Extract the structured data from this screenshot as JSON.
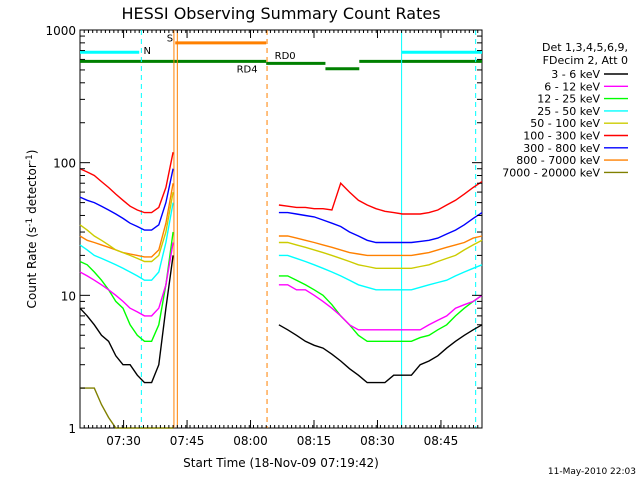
{
  "chart_data": {
    "type": "line",
    "title": "HESSI Observing Summary Count Rates",
    "xlabel": "Start Time (18-Nov-09 07:19:42)",
    "ylabel": "Count Rate (s",
    "ylabel_sup": "-1",
    "ylabel_tail": "detector",
    "ylabel_sup2": "-1",
    "ylabel_close": ")",
    "yscale": "log",
    "ylim": [
      1,
      1000
    ],
    "xlim_minutes": [
      0,
      95
    ],
    "x_ticks": [
      {
        "label": "07:30",
        "minutes": 10.3
      },
      {
        "label": "07:45",
        "minutes": 25.3
      },
      {
        "label": "08:00",
        "minutes": 40.3
      },
      {
        "label": "08:15",
        "minutes": 55.3
      },
      {
        "label": "08:30",
        "minutes": 70.3
      },
      {
        "label": "08:45",
        "minutes": 85.3
      }
    ],
    "y_ticks": [
      {
        "label": "1",
        "value": 1
      },
      {
        "label": "10",
        "value": 10
      },
      {
        "label": "100",
        "value": 100
      },
      {
        "label": "1000",
        "value": 1000
      }
    ],
    "legend": {
      "header": [
        "Det 1,3,4,5,6,9,",
        "FDecim 2, Att 0"
      ],
      "placement": "right"
    },
    "series": [
      {
        "name": "3 - 6 keV",
        "color": "#000000",
        "seg1": [
          8,
          7,
          6,
          5,
          4.5,
          3.5,
          3,
          3,
          2.5,
          2.2,
          2.2,
          3,
          8,
          20
        ],
        "seg2": [
          6,
          5.5,
          5,
          4.5,
          4.2,
          4,
          3.6,
          3.2,
          2.8,
          2.5,
          2.2,
          2.2,
          2.2,
          2.5,
          2.5,
          2.5,
          3,
          3.2,
          3.5,
          4,
          4.5,
          5,
          5.5,
          6
        ]
      },
      {
        "name": "6 - 12 keV",
        "color": "#ff00ff",
        "seg1": [
          15,
          14,
          13,
          12,
          11,
          10,
          9,
          8,
          7.5,
          7,
          7,
          8,
          12,
          25
        ],
        "seg2": [
          12,
          12,
          11,
          11,
          10,
          9,
          8,
          7,
          6,
          5.5,
          5.5,
          5.5,
          5.5,
          5.5,
          5.5,
          5.5,
          5.5,
          6,
          6.5,
          7,
          8,
          8.5,
          9,
          10
        ]
      },
      {
        "name": "12 - 25 keV",
        "color": "#00ff00",
        "seg1": [
          18,
          17,
          15,
          13,
          11,
          9,
          8,
          6,
          5,
          4.5,
          4.5,
          6,
          12,
          30
        ],
        "seg2": [
          14,
          14,
          13,
          12,
          11,
          10,
          8.5,
          7,
          6,
          5,
          4.5,
          4.5,
          4.5,
          4.5,
          4.5,
          4.5,
          4.8,
          5,
          5.5,
          6,
          7,
          8,
          9,
          10
        ]
      },
      {
        "name": "25 - 50 keV",
        "color": "#00ffff",
        "seg1": [
          24,
          22,
          20,
          19,
          18,
          17,
          16,
          15,
          14,
          13,
          13,
          15,
          25,
          50
        ],
        "seg2": [
          20,
          20,
          19,
          18,
          17,
          16,
          15,
          14,
          13,
          12,
          11.5,
          11,
          11,
          11,
          11,
          11,
          11.5,
          12,
          12.5,
          13,
          14,
          15,
          16,
          17
        ]
      },
      {
        "name": "50 - 100 keV",
        "color": "#cccc00",
        "seg1": [
          34,
          31,
          28,
          26,
          24,
          22,
          21,
          20,
          19,
          18,
          18,
          20,
          30,
          60
        ],
        "seg2": [
          25,
          25,
          24,
          23,
          22,
          21,
          20,
          19,
          18,
          17,
          16.5,
          16,
          16,
          16,
          16,
          16,
          16.5,
          17,
          18,
          19,
          20,
          22,
          24,
          26
        ]
      },
      {
        "name": "100 - 300 keV",
        "color": "#ff0000",
        "seg1": [
          90,
          85,
          80,
          72,
          65,
          58,
          52,
          47,
          44,
          42,
          42,
          46,
          65,
          120
        ],
        "seg2": [
          48,
          47,
          46,
          46,
          45,
          45,
          44,
          70,
          60,
          52,
          48,
          45,
          43,
          42,
          41,
          41,
          41,
          42,
          44,
          48,
          52,
          58,
          65,
          72
        ]
      },
      {
        "name": "300 - 800 keV",
        "color": "#0000ff",
        "seg1": [
          55,
          52,
          50,
          47,
          44,
          41,
          38,
          35,
          33,
          31,
          31,
          34,
          50,
          90
        ],
        "seg2": [
          42,
          42,
          41,
          40,
          39,
          37,
          35,
          33,
          30,
          28,
          26,
          25,
          25,
          25,
          25,
          25,
          25.5,
          26,
          27,
          29,
          31,
          34,
          38,
          42
        ]
      },
      {
        "name": "800 - 7000 keV",
        "color": "#ff8000",
        "seg1": [
          28,
          26,
          25,
          24,
          23,
          22,
          21,
          20.5,
          20,
          19.5,
          19.5,
          22,
          35,
          70
        ],
        "seg2": [
          28,
          28,
          27,
          26,
          25,
          24,
          23,
          22,
          21,
          20.5,
          20,
          20,
          20,
          20,
          20,
          20,
          20.5,
          21,
          22,
          23,
          24,
          25,
          27,
          28
        ]
      },
      {
        "name": "7000 - 20000 keV",
        "color": "#808000",
        "seg1": [
          2,
          2,
          2,
          1.5,
          1.2,
          1,
          1,
          1,
          1,
          1,
          1,
          1,
          1,
          1
        ],
        "seg2": []
      }
    ],
    "annotations": [
      {
        "text": "N",
        "color": "#00ffff"
      },
      {
        "text": "S",
        "color": "#ff8000"
      },
      {
        "text": "RD0",
        "color": "#008000"
      },
      {
        "text": "RD4",
        "color": "#008000"
      }
    ]
  },
  "footer_date": "11-May-2010 22:03"
}
